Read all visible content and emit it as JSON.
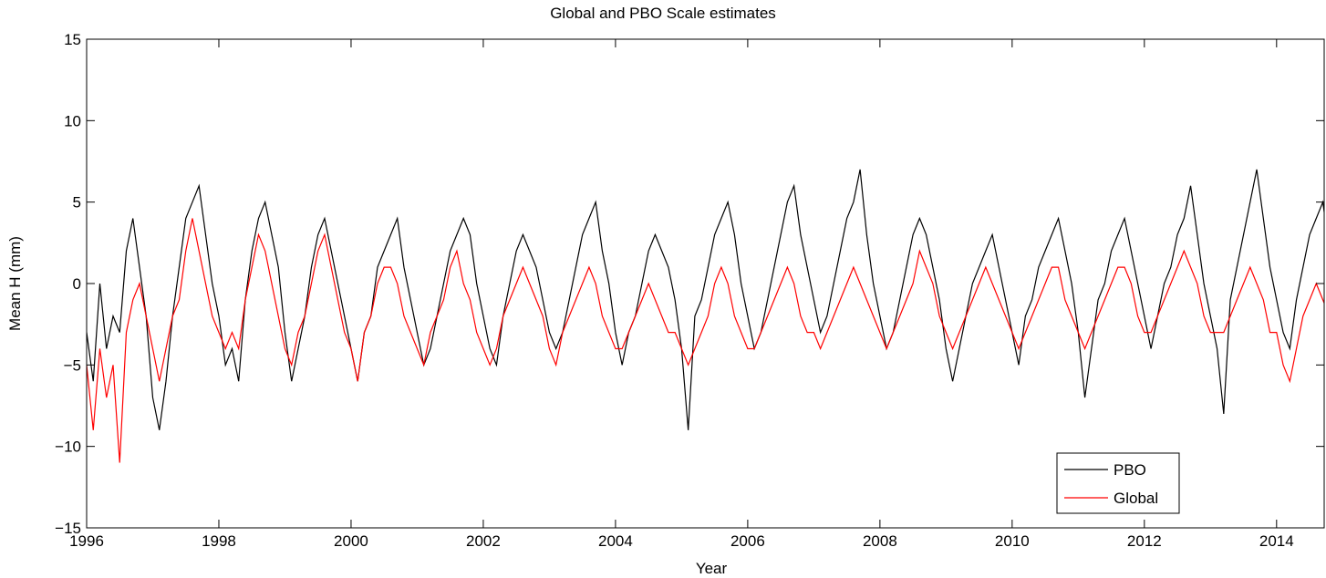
{
  "chart_data": {
    "type": "line",
    "title": "Global and PBO Scale estimates",
    "x_label": "Year",
    "y_label": "Mean H (mm)",
    "xlim": [
      1996,
      2014.72
    ],
    "xticks": [
      1996,
      1998,
      2000,
      2002,
      2004,
      2006,
      2008,
      2010,
      2012,
      2014
    ],
    "ylim": [
      -15,
      15
    ],
    "yticks": [
      {
        "value": -15,
        "label": "−15"
      },
      {
        "value": -10,
        "label": "−10"
      },
      {
        "value": -5,
        "label": "−5"
      },
      0,
      5,
      10,
      15
    ],
    "legend": "lower right",
    "x": [
      1996.0,
      1996.1,
      1996.2,
      1996.3,
      1996.4,
      1996.5,
      1996.6,
      1996.7,
      1996.8,
      1996.9,
      1997.0,
      1997.1,
      1997.2,
      1997.3,
      1997.4,
      1997.5,
      1997.6,
      1997.7,
      1997.8,
      1997.9,
      1998.0,
      1998.1,
      1998.2,
      1998.3,
      1998.4,
      1998.5,
      1998.6,
      1998.7,
      1998.8,
      1998.9,
      1999.0,
      1999.1,
      1999.2,
      1999.3,
      1999.4,
      1999.5,
      1999.6,
      1999.7,
      1999.8,
      1999.9,
      2000.0,
      2000.1,
      2000.2,
      2000.3,
      2000.4,
      2000.5,
      2000.6,
      2000.7,
      2000.8,
      2000.9,
      2001.0,
      2001.1,
      2001.2,
      2001.3,
      2001.4,
      2001.5,
      2001.6,
      2001.7,
      2001.8,
      2001.9,
      2002.0,
      2002.1,
      2002.2,
      2002.3,
      2002.4,
      2002.5,
      2002.6,
      2002.7,
      2002.8,
      2002.9,
      2003.0,
      2003.1,
      2003.2,
      2003.3,
      2003.4,
      2003.5,
      2003.6,
      2003.7,
      2003.8,
      2003.9,
      2004.0,
      2004.1,
      2004.2,
      2004.3,
      2004.4,
      2004.5,
      2004.6,
      2004.7,
      2004.8,
      2004.9,
      2005.0,
      2005.1,
      2005.2,
      2005.3,
      2005.4,
      2005.5,
      2005.6,
      2005.7,
      2005.8,
      2005.9,
      2006.0,
      2006.1,
      2006.2,
      2006.3,
      2006.4,
      2006.5,
      2006.6,
      2006.7,
      2006.8,
      2006.9,
      2007.0,
      2007.1,
      2007.2,
      2007.3,
      2007.4,
      2007.5,
      2007.6,
      2007.7,
      2007.8,
      2007.9,
      2008.0,
      2008.1,
      2008.2,
      2008.3,
      2008.4,
      2008.5,
      2008.6,
      2008.7,
      2008.8,
      2008.9,
      2009.0,
      2009.1,
      2009.2,
      2009.3,
      2009.4,
      2009.5,
      2009.6,
      2009.7,
      2009.8,
      2009.9,
      2010.0,
      2010.1,
      2010.2,
      2010.3,
      2010.4,
      2010.5,
      2010.6,
      2010.7,
      2010.8,
      2010.9,
      2011.0,
      2011.1,
      2011.2,
      2011.3,
      2011.4,
      2011.5,
      2011.6,
      2011.7,
      2011.8,
      2011.9,
      2012.0,
      2012.1,
      2012.2,
      2012.3,
      2012.4,
      2012.5,
      2012.6,
      2012.7,
      2012.8,
      2012.9,
      2013.0,
      2013.1,
      2013.2,
      2013.3,
      2013.4,
      2013.5,
      2013.6,
      2013.7,
      2013.8,
      2013.9,
      2014.0,
      2014.1,
      2014.2,
      2014.3,
      2014.4,
      2014.5,
      2014.6,
      2014.7,
      2014.8
    ],
    "series": [
      {
        "name": "PBO",
        "color": "#000000",
        "values": [
          -3,
          -6,
          0,
          -4,
          -2,
          -3,
          2,
          4,
          1,
          -2,
          -7,
          -9,
          -6,
          -2,
          1,
          4,
          5,
          6,
          3,
          0,
          -2,
          -5,
          -4,
          -6,
          -1,
          2,
          4,
          5,
          3,
          1,
          -3,
          -6,
          -4,
          -2,
          1,
          3,
          4,
          2,
          0,
          -2,
          -4,
          -6,
          -3,
          -2,
          1,
          2,
          3,
          4,
          1,
          -1,
          -3,
          -5,
          -4,
          -2,
          0,
          2,
          3,
          4,
          3,
          0,
          -2,
          -4,
          -5,
          -2,
          0,
          2,
          3,
          2,
          1,
          -1,
          -3,
          -4,
          -3,
          -1,
          1,
          3,
          4,
          5,
          2,
          0,
          -3,
          -5,
          -3,
          -2,
          0,
          2,
          3,
          2,
          1,
          -1,
          -4,
          -9,
          -2,
          -1,
          1,
          3,
          4,
          5,
          3,
          0,
          -2,
          -4,
          -3,
          -1,
          1,
          3,
          5,
          6,
          3,
          1,
          -1,
          -3,
          -2,
          0,
          2,
          4,
          5,
          7,
          3,
          0,
          -2,
          -4,
          -3,
          -1,
          1,
          3,
          4,
          3,
          1,
          -1,
          -4,
          -6,
          -4,
          -2,
          0,
          1,
          2,
          3,
          1,
          -1,
          -3,
          -5,
          -2,
          -1,
          1,
          2,
          3,
          4,
          2,
          0,
          -3,
          -7,
          -4,
          -1,
          0,
          2,
          3,
          4,
          2,
          0,
          -2,
          -4,
          -2,
          0,
          1,
          3,
          4,
          6,
          3,
          0,
          -2,
          -4,
          -8,
          -1,
          1,
          3,
          5,
          7,
          4,
          1,
          -1,
          -3,
          -4,
          -1,
          1,
          3,
          4,
          5,
          2
        ]
      },
      {
        "name": "Global",
        "color": "#ff0000",
        "values": [
          -5,
          -9,
          -4,
          -7,
          -5,
          -11,
          -3,
          -1,
          0,
          -2,
          -4,
          -6,
          -4,
          -2,
          -1,
          2,
          4,
          2,
          0,
          -2,
          -3,
          -4,
          -3,
          -4,
          -1,
          1,
          3,
          2,
          0,
          -2,
          -4,
          -5,
          -3,
          -2,
          0,
          2,
          3,
          1,
          -1,
          -3,
          -4,
          -6,
          -3,
          -2,
          0,
          1,
          1,
          0,
          -2,
          -3,
          -4,
          -5,
          -3,
          -2,
          -1,
          1,
          2,
          0,
          -1,
          -3,
          -4,
          -5,
          -4,
          -2,
          -1,
          0,
          1,
          0,
          -1,
          -2,
          -4,
          -5,
          -3,
          -2,
          -1,
          0,
          1,
          0,
          -2,
          -3,
          -4,
          -4,
          -3,
          -2,
          -1,
          0,
          -1,
          -2,
          -3,
          -3,
          -4,
          -5,
          -4,
          -3,
          -2,
          0,
          1,
          0,
          -2,
          -3,
          -4,
          -4,
          -3,
          -2,
          -1,
          0,
          1,
          0,
          -2,
          -3,
          -3,
          -4,
          -3,
          -2,
          -1,
          0,
          1,
          0,
          -1,
          -2,
          -3,
          -4,
          -3,
          -2,
          -1,
          0,
          2,
          1,
          0,
          -2,
          -3,
          -4,
          -3,
          -2,
          -1,
          0,
          1,
          0,
          -1,
          -2,
          -3,
          -4,
          -3,
          -2,
          -1,
          0,
          1,
          1,
          -1,
          -2,
          -3,
          -4,
          -3,
          -2,
          -1,
          0,
          1,
          1,
          0,
          -2,
          -3,
          -3,
          -2,
          -1,
          0,
          1,
          2,
          1,
          0,
          -2,
          -3,
          -3,
          -3,
          -2,
          -1,
          0,
          1,
          0,
          -1,
          -3,
          -3,
          -5,
          -6,
          -4,
          -2,
          -1,
          0,
          -1,
          -2
        ]
      }
    ]
  }
}
